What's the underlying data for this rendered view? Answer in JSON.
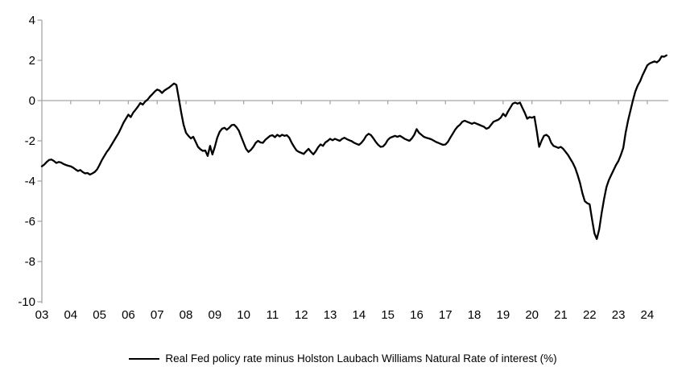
{
  "chart_data": {
    "type": "line",
    "title": "",
    "legend_position": "bottom-center",
    "legend": [
      {
        "label": "Real Fed policy rate minus Holston Laubach Williams Natural Rate of interest (%)",
        "color": "#000000"
      }
    ],
    "x_tick_labels": [
      "03",
      "04",
      "05",
      "06",
      "07",
      "08",
      "09",
      "10",
      "11",
      "12",
      "13",
      "14",
      "15",
      "16",
      "17",
      "18",
      "19",
      "20",
      "21",
      "22",
      "23",
      "24"
    ],
    "y_tick_labels": [
      "4",
      "2",
      "0",
      "-2",
      "-4",
      "-6",
      "-8",
      "-10"
    ],
    "y_ticks": [
      4,
      2,
      0,
      -2,
      -4,
      -6,
      -8,
      -10
    ],
    "ylim": [
      -10,
      4
    ],
    "grid": "off",
    "zero_axis_line": true,
    "axis_color": "#a6a6a6",
    "series": [
      {
        "name": "Real Fed policy rate minus Holston Laubach Williams Natural Rate of interest (%)",
        "color": "#000000",
        "frequency": "monthly",
        "start": "2003-01",
        "end": "2024-09",
        "values": [
          -3.27,
          -3.18,
          -3.05,
          -2.95,
          -2.93,
          -3.0,
          -3.1,
          -3.05,
          -3.08,
          -3.15,
          -3.2,
          -3.24,
          -3.27,
          -3.33,
          -3.42,
          -3.5,
          -3.45,
          -3.55,
          -3.62,
          -3.6,
          -3.68,
          -3.62,
          -3.55,
          -3.42,
          -3.2,
          -2.95,
          -2.75,
          -2.55,
          -2.4,
          -2.2,
          -2.0,
          -1.8,
          -1.6,
          -1.35,
          -1.1,
          -0.9,
          -0.7,
          -0.82,
          -0.6,
          -0.45,
          -0.3,
          -0.12,
          -0.2,
          -0.05,
          0.05,
          0.2,
          0.32,
          0.45,
          0.55,
          0.5,
          0.38,
          0.5,
          0.58,
          0.65,
          0.75,
          0.85,
          0.78,
          0.1,
          -0.6,
          -1.2,
          -1.6,
          -1.75,
          -1.88,
          -1.8,
          -2.05,
          -2.3,
          -2.42,
          -2.5,
          -2.48,
          -2.75,
          -2.25,
          -2.68,
          -2.3,
          -1.85,
          -1.55,
          -1.4,
          -1.35,
          -1.45,
          -1.35,
          -1.22,
          -1.2,
          -1.32,
          -1.5,
          -1.8,
          -2.1,
          -2.4,
          -2.55,
          -2.45,
          -2.3,
          -2.1,
          -2.0,
          -2.08,
          -2.1,
          -1.95,
          -1.85,
          -1.75,
          -1.72,
          -1.82,
          -1.7,
          -1.78,
          -1.7,
          -1.75,
          -1.72,
          -1.85,
          -2.1,
          -2.3,
          -2.48,
          -2.55,
          -2.6,
          -2.65,
          -2.52,
          -2.4,
          -2.55,
          -2.67,
          -2.52,
          -2.32,
          -2.18,
          -2.25,
          -2.08,
          -2.0,
          -1.9,
          -1.97,
          -1.9,
          -1.95,
          -2.0,
          -1.9,
          -1.85,
          -1.92,
          -1.97,
          -2.02,
          -2.1,
          -2.15,
          -2.2,
          -2.1,
          -1.95,
          -1.75,
          -1.65,
          -1.72,
          -1.88,
          -2.05,
          -2.2,
          -2.3,
          -2.28,
          -2.15,
          -1.95,
          -1.85,
          -1.8,
          -1.75,
          -1.8,
          -1.75,
          -1.82,
          -1.9,
          -1.95,
          -2.0,
          -1.88,
          -1.7,
          -1.42,
          -1.6,
          -1.7,
          -1.8,
          -1.85,
          -1.88,
          -1.92,
          -1.98,
          -2.05,
          -2.1,
          -2.15,
          -2.2,
          -2.18,
          -2.05,
          -1.85,
          -1.65,
          -1.45,
          -1.3,
          -1.2,
          -1.05,
          -1.0,
          -1.05,
          -1.1,
          -1.15,
          -1.1,
          -1.15,
          -1.2,
          -1.25,
          -1.3,
          -1.4,
          -1.35,
          -1.2,
          -1.05,
          -1.0,
          -0.95,
          -0.85,
          -0.65,
          -0.78,
          -0.55,
          -0.35,
          -0.15,
          -0.1,
          -0.15,
          -0.1,
          -0.35,
          -0.6,
          -0.9,
          -0.82,
          -0.85,
          -0.8,
          -1.5,
          -2.3,
          -2.0,
          -1.75,
          -1.7,
          -1.8,
          -2.1,
          -2.25,
          -2.3,
          -2.35,
          -2.3,
          -2.4,
          -2.55,
          -2.7,
          -2.9,
          -3.1,
          -3.35,
          -3.7,
          -4.1,
          -4.6,
          -5.0,
          -5.1,
          -5.15,
          -5.9,
          -6.6,
          -6.88,
          -6.4,
          -5.6,
          -4.9,
          -4.3,
          -3.95,
          -3.7,
          -3.45,
          -3.2,
          -3.0,
          -2.7,
          -2.35,
          -1.6,
          -1.0,
          -0.5,
          0.0,
          0.45,
          0.75,
          0.95,
          1.25,
          1.5,
          1.75,
          1.85,
          1.9,
          1.95,
          1.9,
          2.0,
          2.2,
          2.18,
          2.25
        ]
      }
    ]
  }
}
